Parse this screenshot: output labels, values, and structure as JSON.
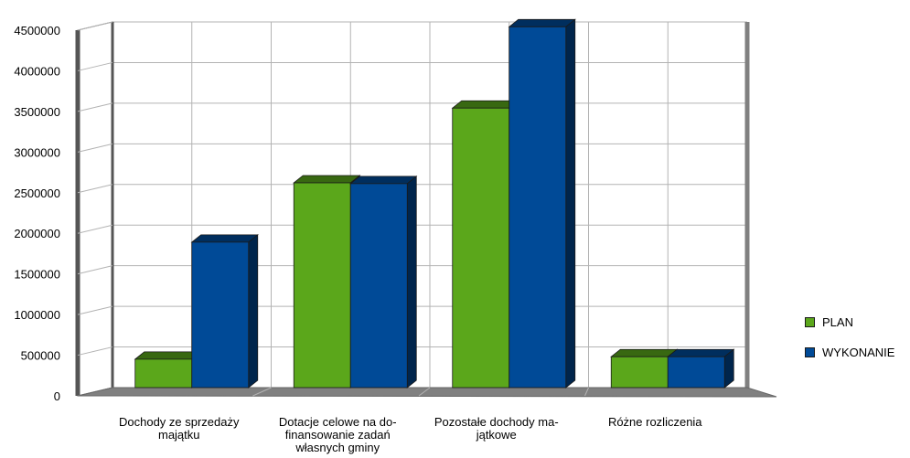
{
  "chart_data": {
    "type": "bar",
    "categories": [
      [
        "Dochody ze sprzedaży",
        "majątku"
      ],
      [
        "Dotacje celowe na do-",
        "finansowanie zadań",
        "własnych gminy"
      ],
      [
        "Pozostałe dochody ma-",
        "jątkowe"
      ],
      [
        "Różne rozliczenia"
      ]
    ],
    "series": [
      {
        "name": "PLAN",
        "color": "#5ba71b",
        "values": [
          350000,
          2520000,
          3440000,
          380000
        ]
      },
      {
        "name": "WYKONANIE",
        "color": "#004a97",
        "values": [
          1790000,
          2510000,
          4440000,
          380000
        ]
      }
    ],
    "ylim": [
      0,
      4500000
    ],
    "yticks": [
      "0",
      "500000",
      "1000000",
      "1500000",
      "2000000",
      "2500000",
      "3000000",
      "3500000",
      "4000000",
      "4500000"
    ],
    "grid": true,
    "legend_position": "right",
    "style": "3d-bars"
  }
}
